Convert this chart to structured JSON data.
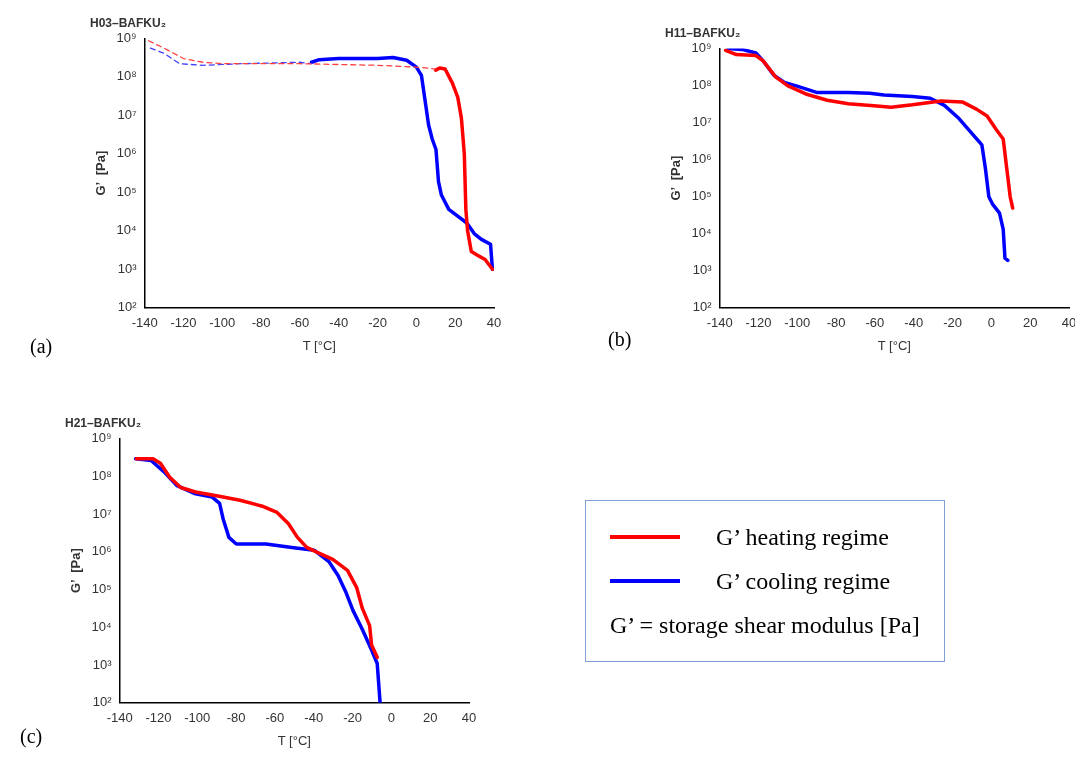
{
  "chart_data": [
    {
      "type": "line",
      "title": "H03–BAFKU₂",
      "xlabel": "T [°C]",
      "ylabel": "G’  [Pa]",
      "log": "y",
      "xlim": [
        -140,
        40
      ],
      "xticks": [
        -140,
        -120,
        -100,
        -80,
        -60,
        -40,
        -20,
        0,
        20,
        40
      ],
      "ylim": [
        100,
        1000000000
      ],
      "yticks": [
        {
          "value": 100,
          "label": "10²"
        },
        {
          "value": 1000,
          "label": "10³"
        },
        {
          "value": 10000,
          "label": "10⁴"
        },
        {
          "value": 100000,
          "label": "10⁵"
        },
        {
          "value": 1000000,
          "label": "10⁶"
        },
        {
          "value": 10000000,
          "label": "10⁷"
        },
        {
          "value": 100000000,
          "label": "10⁸"
        },
        {
          "value": 1000000000,
          "label": "10⁹"
        }
      ],
      "annotations": [
        "(a)"
      ],
      "series": [
        {
          "color": "#ff4040",
          "line_style": "dashed",
          "x": [
            -138,
            -130,
            -120,
            -110,
            -100,
            -60,
            -20,
            0,
            10
          ],
          "values": [
            870000000,
            560000000,
            300000000,
            240000000,
            220000000,
            220000000,
            200000000,
            180000000,
            160000000
          ]
        },
        {
          "color": "#ff0000",
          "line_style": "solid",
          "x": [
            10,
            12,
            14.8,
            18.5,
            21.3,
            23.2,
            24.7,
            25.5,
            26.4,
            28.3,
            31.7,
            35.4,
            39.2
          ],
          "values": [
            150000000,
            170000000,
            160000000,
            70000000,
            30000000,
            8500000,
            1000000,
            36000,
            10000,
            2900,
            2300,
            1800,
            1000
          ]
        },
        {
          "color": "#4040ff",
          "line_style": "dashed",
          "x": [
            -137,
            -130,
            -122,
            -110,
            -90,
            -60,
            -54
          ],
          "values": [
            560000000,
            410000000,
            220000000,
            200000000,
            220000000,
            240000000,
            220000000
          ]
        },
        {
          "color": "#0000ff",
          "line_style": "solid",
          "x": [
            -54,
            -50,
            -40,
            -20,
            -12,
            -5,
            0,
            2.6,
            4.5,
            6.3,
            8.2,
            10.1,
            11.4,
            12.9,
            16.7,
            21.3,
            26,
            29.8,
            33.5,
            38.2,
            39.2
          ],
          "values": [
            240000000,
            280000000,
            300000000,
            300000000,
            320000000,
            270000000,
            180000000,
            110000000,
            24000000,
            5600000,
            2400000,
            1300000,
            190000,
            85000,
            36000,
            24000,
            16000,
            8500,
            6000,
            4500,
            1000
          ]
        }
      ]
    },
    {
      "type": "line",
      "title": "H11–BAFKU₂",
      "xlabel": "T [°C]",
      "ylabel": "G’  [Pa]",
      "log": "y",
      "xlim": [
        -140,
        40
      ],
      "xticks": [
        -140,
        -120,
        -100,
        -80,
        -60,
        -40,
        -20,
        0,
        20,
        40
      ],
      "ylim": [
        100,
        1000000000
      ],
      "yticks": [
        {
          "value": 100,
          "label": "10²"
        },
        {
          "value": 1000,
          "label": "10³"
        },
        {
          "value": 10000,
          "label": "10⁴"
        },
        {
          "value": 100000,
          "label": "10⁵"
        },
        {
          "value": 1000000,
          "label": "10⁶"
        },
        {
          "value": 10000000,
          "label": "10⁷"
        },
        {
          "value": 100000000,
          "label": "10⁸"
        },
        {
          "value": 1000000000,
          "label": "10⁹"
        }
      ],
      "annotations": [
        "(b)"
      ],
      "series": [
        {
          "color": "#ff0000",
          "x": [
            -136.9,
            -131.4,
            -121.3,
            -117.6,
            -111.2,
            -104.8,
            -95.6,
            -84.6,
            -73.7,
            -59,
            -51.7,
            -40.7,
            -26,
            -15,
            -7.7,
            -2.2,
            2.4,
            6.1,
            7.9,
            9.7,
            11
          ],
          "values": [
            890000000,
            680000000,
            640000000,
            460000000,
            170000000,
            97000000,
            59000000,
            40000000,
            32000000,
            28000000,
            26000000,
            30000000,
            38000000,
            36000000,
            23000000,
            15000000,
            6600000,
            3600000,
            590000,
            99000,
            49000
          ]
        },
        {
          "color": "#0000ff",
          "x": [
            -135.6,
            -128.6,
            -121.3,
            -117.6,
            -112.1,
            -106.6,
            -99.3,
            -90.1,
            -73.7,
            -62.7,
            -55.3,
            -40.7,
            -31.5,
            -24.2,
            -16.8,
            -11.3,
            -4.9,
            -3.1,
            -1.3,
            0.6,
            4.2,
            6.1,
            7,
            8.5
          ],
          "values": [
            1000000000,
            940000000,
            750000000,
            460000000,
            190000000,
            120000000,
            93000000,
            65000000,
            65000000,
            62000000,
            55000000,
            50000000,
            45000000,
            29000000,
            13000000,
            6000000,
            2500000,
            590000,
            99000,
            63000,
            36000,
            13000,
            2200,
            1900
          ]
        }
      ]
    },
    {
      "type": "line",
      "title": "H21–BAFKU₂",
      "xlabel": "T [°C]",
      "ylabel": "G’  [Pa]",
      "log": "y",
      "xlim": [
        -140,
        40
      ],
      "xticks": [
        -140,
        -120,
        -100,
        -80,
        -60,
        -40,
        -20,
        0,
        20,
        40
      ],
      "ylim": [
        100,
        1000000000
      ],
      "yticks": [
        {
          "value": 100,
          "label": "10²"
        },
        {
          "value": 1000,
          "label": "10³"
        },
        {
          "value": 10000,
          "label": "10⁴"
        },
        {
          "value": 100000,
          "label": "10⁵"
        },
        {
          "value": 1000000,
          "label": "10⁶"
        },
        {
          "value": 10000000,
          "label": "10⁷"
        },
        {
          "value": 100000000,
          "label": "10⁸"
        },
        {
          "value": 1000000000,
          "label": "10⁹"
        }
      ],
      "annotations": [
        "(c)",
        "G’ = storage shear modulus [Pa]"
      ],
      "legend": "right",
      "series": [
        {
          "name": "G’ heating regime",
          "color": "#ff0000",
          "x": [
            -131.4,
            -122.8,
            -119,
            -114.2,
            -108.5,
            -100.9,
            -89.4,
            -78,
            -66.5,
            -58.9,
            -53.1,
            -48.4,
            -43.6,
            -37.9,
            -30.2,
            -22.6,
            -17.8,
            -15,
            -11.2,
            -10.2,
            -7.3
          ],
          "values": [
            290000000,
            290000000,
            220000000,
            94000000,
            50000000,
            38000000,
            30000000,
            23000000,
            16000000,
            11000000,
            5600000,
            2400000,
            1300000,
            950000,
            630000,
            320000,
            110000,
            32000,
            11000,
            3400,
            1600
          ]
        },
        {
          "name": "G’ cooling regime",
          "color": "#0000ff",
          "x": [
            -131.8,
            -123.8,
            -117.1,
            -110.4,
            -100.9,
            -92.3,
            -88.5,
            -86.6,
            -83.7,
            -79.9,
            -64.6,
            -51.3,
            -39.8,
            -32.2,
            -27.4,
            -23.6,
            -19.8,
            -15,
            -10.2,
            -7.3,
            -5.8
          ],
          "values": [
            290000000,
            260000000,
            130000000,
            56000000,
            34000000,
            28000000,
            19000000,
            7100000,
            2400000,
            1600000,
            1600000,
            1300000,
            1100000,
            550000,
            230000,
            89000,
            28000,
            8900,
            2500,
            1100,
            100
          ]
        }
      ]
    }
  ]
}
